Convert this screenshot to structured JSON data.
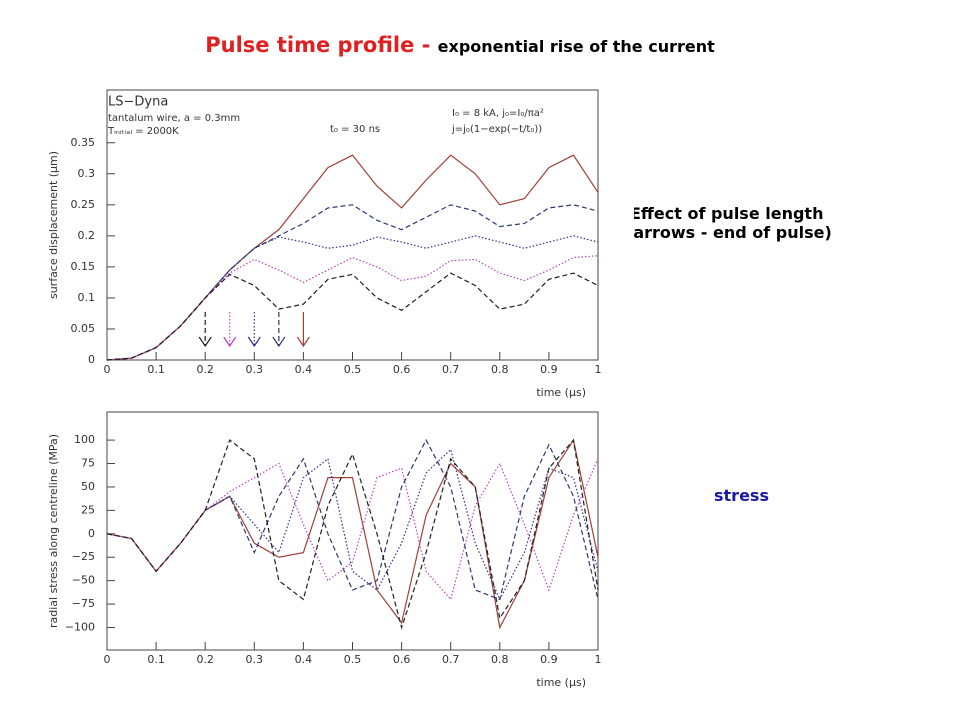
{
  "title": {
    "main": "Pulse time profile - ",
    "rest": "exponential rise of the current"
  },
  "notes": {
    "effect": [
      "Effect of pulse length",
      "(arrows - end of pulse)"
    ],
    "stress": "stress"
  },
  "chart_data": [
    {
      "type": "line",
      "xlabel": "time (μs)",
      "ylabel": "surface displacement (μm)",
      "annotations": [
        "LS−Dyna",
        "tantalum wire, a = 0.3mm",
        "Tᵢₙᵢₜᵢₐₗ = 2000K",
        "t₀ = 30 ns",
        "I₀ = 8 kA, j₀=I₀/πa²",
        "j=j₀(1−exp(−t/t₀))"
      ],
      "xlim": [
        0,
        1
      ],
      "xticks": [
        0,
        0.1,
        0.2,
        0.3,
        0.4,
        0.5,
        0.6,
        0.7,
        0.8,
        0.9,
        1
      ],
      "ylim": [
        0,
        0.435
      ],
      "yticks": [
        0,
        0.05,
        0.1,
        0.15,
        0.2,
        0.25,
        0.3,
        0.35
      ],
      "x": [
        0,
        0.05,
        0.1,
        0.15,
        0.2,
        0.25,
        0.3,
        0.35,
        0.4,
        0.45,
        0.5,
        0.55,
        0.6,
        0.65,
        0.7,
        0.75,
        0.8,
        0.85,
        0.9,
        0.95,
        1
      ],
      "series": [
        {
          "color": "#a0403a",
          "linestyle": "solid",
          "pulse_end": 0.4,
          "values": [
            0,
            0.003,
            0.02,
            0.055,
            0.1,
            0.145,
            0.18,
            0.21,
            0.26,
            0.31,
            0.33,
            0.28,
            0.245,
            0.29,
            0.33,
            0.3,
            0.25,
            0.26,
            0.31,
            0.33,
            0.27
          ]
        },
        {
          "color": "#2a3a70",
          "linestyle": "dashed",
          "pulse_end": 0.35,
          "values": [
            0,
            0.003,
            0.02,
            0.055,
            0.1,
            0.145,
            0.18,
            0.2,
            0.22,
            0.245,
            0.25,
            0.225,
            0.21,
            0.23,
            0.25,
            0.24,
            0.215,
            0.22,
            0.245,
            0.25,
            0.24
          ]
        },
        {
          "color": "#303090",
          "linestyle": "dotted",
          "pulse_end": 0.3,
          "values": [
            0,
            0.003,
            0.02,
            0.055,
            0.1,
            0.145,
            0.18,
            0.198,
            0.19,
            0.18,
            0.185,
            0.198,
            0.19,
            0.18,
            0.19,
            0.2,
            0.19,
            0.18,
            0.19,
            0.2,
            0.19
          ]
        },
        {
          "color": "#c040c0",
          "linestyle": "dotted",
          "pulse_end": 0.25,
          "values": [
            0,
            0.003,
            0.02,
            0.055,
            0.1,
            0.14,
            0.162,
            0.145,
            0.125,
            0.145,
            0.165,
            0.15,
            0.128,
            0.135,
            0.16,
            0.162,
            0.14,
            0.128,
            0.145,
            0.165,
            0.168
          ]
        },
        {
          "color": "#202020",
          "linestyle": "dashed",
          "pulse_end": 0.2,
          "values": [
            0,
            0.003,
            0.02,
            0.055,
            0.1,
            0.138,
            0.12,
            0.082,
            0.09,
            0.13,
            0.138,
            0.1,
            0.08,
            0.11,
            0.14,
            0.12,
            0.082,
            0.09,
            0.13,
            0.14,
            0.12
          ]
        }
      ]
    },
    {
      "type": "line",
      "xlabel": "time (μs)",
      "ylabel": "radial stress along centreline (MPa)",
      "xlim": [
        0,
        1
      ],
      "xticks": [
        0,
        0.1,
        0.2,
        0.3,
        0.4,
        0.5,
        0.6,
        0.7,
        0.8,
        0.9,
        1
      ],
      "ylim": [
        -124,
        130
      ],
      "yticks": [
        {
          "value": -100,
          "label": "−100"
        },
        {
          "value": -75,
          "label": "−75"
        },
        {
          "value": -50,
          "label": "−50"
        },
        {
          "value": -25,
          "label": "−25"
        },
        0,
        25,
        50,
        75,
        100
      ],
      "x": [
        0,
        0.05,
        0.1,
        0.15,
        0.2,
        0.25,
        0.3,
        0.35,
        0.4,
        0.45,
        0.5,
        0.55,
        0.6,
        0.65,
        0.7,
        0.75,
        0.8,
        0.85,
        0.9,
        0.95,
        1
      ],
      "series": [
        {
          "color": "#a0403a",
          "linestyle": "solid",
          "values": [
            0,
            -5,
            -40,
            -10,
            25,
            40,
            -10,
            -25,
            -20,
            60,
            60,
            -60,
            -95,
            20,
            75,
            50,
            -100,
            -50,
            60,
            100,
            -25
          ]
        },
        {
          "color": "#2a3a70",
          "linestyle": "dashed",
          "values": [
            0,
            -5,
            -40,
            -10,
            25,
            40,
            -20,
            40,
            80,
            0,
            -60,
            -50,
            50,
            100,
            50,
            -60,
            -70,
            40,
            95,
            40,
            -70
          ]
        },
        {
          "color": "#303090",
          "linestyle": "dotted",
          "values": [
            0,
            -5,
            -40,
            -10,
            25,
            40,
            10,
            -20,
            60,
            80,
            -40,
            -60,
            -10,
            65,
            90,
            -10,
            -70,
            -20,
            70,
            60,
            -40
          ]
        },
        {
          "color": "#c040c0",
          "linestyle": "dotted",
          "values": [
            0,
            -5,
            -40,
            -10,
            25,
            45,
            60,
            75,
            10,
            -50,
            -30,
            60,
            70,
            -40,
            -70,
            30,
            75,
            10,
            -60,
            20,
            80
          ]
        },
        {
          "color": "#202020",
          "linestyle": "dashed",
          "values": [
            0,
            -5,
            -40,
            -10,
            25,
            100,
            80,
            -50,
            -70,
            30,
            85,
            0,
            -100,
            -20,
            80,
            50,
            -90,
            -50,
            70,
            100,
            -60
          ]
        }
      ]
    }
  ]
}
